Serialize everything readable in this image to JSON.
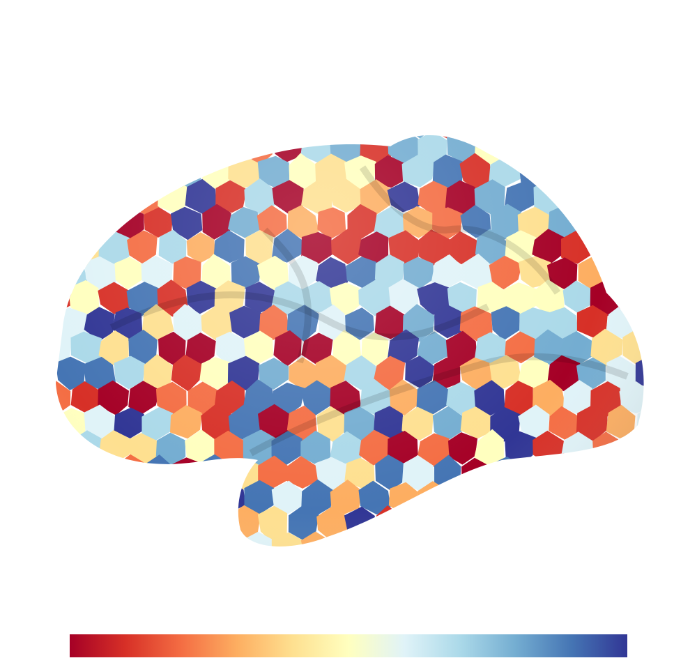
{
  "colorbar": {
    "colors": [
      "#a50026",
      "#d73027",
      "#f46d43",
      "#fdae61",
      "#fee090",
      "#ffffbf",
      "#e0f3f8",
      "#abd9e9",
      "#74add1",
      "#4575b4",
      "#313695"
    ]
  }
}
